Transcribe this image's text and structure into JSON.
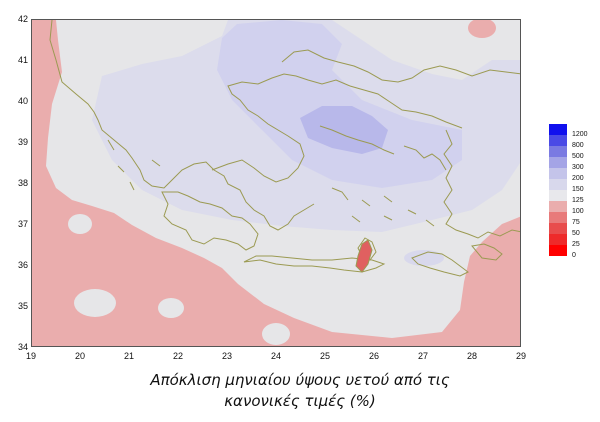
{
  "map": {
    "x_ticks": [
      "19",
      "20",
      "21",
      "22",
      "23",
      "24",
      "25",
      "26",
      "27",
      "28",
      "29"
    ],
    "y_ticks": [
      "42",
      "41",
      "40",
      "39",
      "38",
      "37",
      "36",
      "35",
      "34"
    ],
    "colors": {
      "below_100": "#eaadad",
      "range_100_125": "#e6e6e8",
      "range_125_150": "#dcdcec",
      "range_150_200": "#d1d1ee",
      "range_200_300": "#b8b8ea",
      "coastline": "#9b9a52"
    }
  },
  "legend": {
    "items": [
      {
        "label": "1200",
        "color": "#1010ee"
      },
      {
        "label": "800",
        "color": "#4a4ae6"
      },
      {
        "label": "500",
        "color": "#7a7ae2"
      },
      {
        "label": "300",
        "color": "#a4a4e6"
      },
      {
        "label": "200",
        "color": "#c4c4ea"
      },
      {
        "label": "150",
        "color": "#d8d8ec"
      },
      {
        "label": "125",
        "color": "#e8e8ec"
      },
      {
        "label": "100",
        "color": "#eaadad"
      },
      {
        "label": "75",
        "color": "#e87a7a"
      },
      {
        "label": "50",
        "color": "#e84c4c"
      },
      {
        "label": "25",
        "color": "#ee2a2a"
      },
      {
        "label": "0",
        "color": "#ff0000"
      }
    ]
  },
  "caption": {
    "line1": "Απόκλιση μηνιαίου ύψους υετού από τις",
    "line2": "κανονικές τιμές (%)"
  }
}
